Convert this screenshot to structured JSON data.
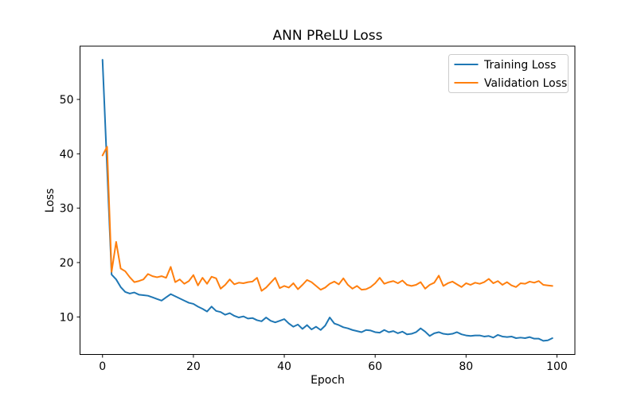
{
  "window": {
    "background": "#ffffff",
    "frame_color": "#000000"
  },
  "chart_data": {
    "type": "line",
    "title": "ANN PReLU Loss",
    "xlabel": "Epoch",
    "ylabel": "Loss",
    "xlim": [
      -4.95,
      103.95
    ],
    "ylim": [
      3.1,
      59.8
    ],
    "x_ticks": [
      0,
      20,
      40,
      60,
      80,
      100
    ],
    "y_ticks": [
      10,
      20,
      30,
      40,
      50
    ],
    "grid": false,
    "legend": {
      "position": "upper right"
    },
    "x": [
      0,
      1,
      2,
      3,
      4,
      5,
      6,
      7,
      8,
      9,
      10,
      11,
      12,
      13,
      14,
      15,
      16,
      17,
      18,
      19,
      20,
      21,
      22,
      23,
      24,
      25,
      26,
      27,
      28,
      29,
      30,
      31,
      32,
      33,
      34,
      35,
      36,
      37,
      38,
      39,
      40,
      41,
      42,
      43,
      44,
      45,
      46,
      47,
      48,
      49,
      50,
      51,
      52,
      53,
      54,
      55,
      56,
      57,
      58,
      59,
      60,
      61,
      62,
      63,
      64,
      65,
      66,
      67,
      68,
      69,
      70,
      71,
      72,
      73,
      74,
      75,
      76,
      77,
      78,
      79,
      80,
      81,
      82,
      83,
      84,
      85,
      86,
      87,
      88,
      89,
      90,
      91,
      92,
      93,
      94,
      95,
      96,
      97,
      98,
      99
    ],
    "series": [
      {
        "name": "Training Loss",
        "color": "#1f77b4",
        "values": [
          57.3,
          37.5,
          17.8,
          16.9,
          15.5,
          14.6,
          14.3,
          14.5,
          14.1,
          14.0,
          13.9,
          13.6,
          13.3,
          13.0,
          13.6,
          14.2,
          13.8,
          13.4,
          13.0,
          12.6,
          12.4,
          11.9,
          11.5,
          11.0,
          11.9,
          11.1,
          10.9,
          10.4,
          10.7,
          10.2,
          9.9,
          10.1,
          9.7,
          9.8,
          9.4,
          9.2,
          9.9,
          9.3,
          9.0,
          9.3,
          9.6,
          8.8,
          8.2,
          8.6,
          7.8,
          8.5,
          7.7,
          8.2,
          7.6,
          8.4,
          9.9,
          8.8,
          8.5,
          8.1,
          7.9,
          7.6,
          7.4,
          7.2,
          7.6,
          7.5,
          7.2,
          7.1,
          7.6,
          7.2,
          7.4,
          7.0,
          7.3,
          6.8,
          6.9,
          7.2,
          7.9,
          7.3,
          6.5,
          7.0,
          7.2,
          6.9,
          6.8,
          6.9,
          7.2,
          6.8,
          6.6,
          6.5,
          6.6,
          6.6,
          6.4,
          6.5,
          6.2,
          6.7,
          6.4,
          6.3,
          6.4,
          6.1,
          6.2,
          6.1,
          6.3,
          6.0,
          6.0,
          5.6,
          5.7,
          6.1
        ]
      },
      {
        "name": "Validation Loss",
        "color": "#ff7f0e",
        "values": [
          39.7,
          41.3,
          18.3,
          23.8,
          18.9,
          18.4,
          17.3,
          16.4,
          16.6,
          16.9,
          17.9,
          17.5,
          17.3,
          17.5,
          17.2,
          19.2,
          16.4,
          16.9,
          16.1,
          16.6,
          17.7,
          15.8,
          17.2,
          16.1,
          17.4,
          17.1,
          15.2,
          15.9,
          16.9,
          16.0,
          16.3,
          16.2,
          16.4,
          16.5,
          17.2,
          14.8,
          15.4,
          16.3,
          17.2,
          15.3,
          15.7,
          15.4,
          16.2,
          15.1,
          15.9,
          16.8,
          16.4,
          15.7,
          15.0,
          15.4,
          16.1,
          16.5,
          16.0,
          17.1,
          15.9,
          15.2,
          15.7,
          15.0,
          15.1,
          15.5,
          16.2,
          17.2,
          16.1,
          16.4,
          16.6,
          16.2,
          16.7,
          15.9,
          15.7,
          15.9,
          16.4,
          15.2,
          15.9,
          16.3,
          17.6,
          15.7,
          16.2,
          16.5,
          16.0,
          15.5,
          16.2,
          15.9,
          16.3,
          16.1,
          16.4,
          17.0,
          16.2,
          16.6,
          15.9,
          16.4,
          15.8,
          15.5,
          16.2,
          16.1,
          16.5,
          16.3,
          16.6,
          15.9,
          15.8,
          15.7
        ]
      }
    ]
  }
}
